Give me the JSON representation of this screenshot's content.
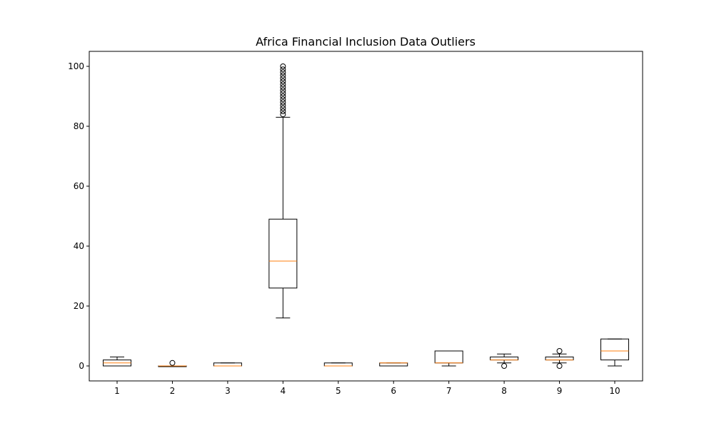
{
  "chart_data": {
    "type": "boxplot",
    "title": "Africa Financial Inclusion Data Outliers",
    "xlabel": "",
    "ylabel": "",
    "categories": [
      "1",
      "2",
      "3",
      "4",
      "5",
      "6",
      "7",
      "8",
      "9",
      "10"
    ],
    "ylim": [
      -5,
      105
    ],
    "yticks": [
      0,
      20,
      40,
      60,
      80,
      100
    ],
    "grid": false,
    "colors": {
      "box": "#000000",
      "median": "#ff7f0e",
      "flier": "#000000"
    },
    "boxes": [
      {
        "label": "1",
        "whisker_low": 0,
        "q1": 0,
        "median": 1,
        "q3": 2,
        "whisker_high": 3,
        "outliers": []
      },
      {
        "label": "2",
        "whisker_low": 0,
        "q1": 0,
        "median": 0,
        "q3": 0,
        "whisker_high": 0,
        "outliers": [
          1
        ]
      },
      {
        "label": "3",
        "whisker_low": 0,
        "q1": 0,
        "median": 0,
        "q3": 1,
        "whisker_high": 1,
        "outliers": []
      },
      {
        "label": "4",
        "whisker_low": 16,
        "q1": 26,
        "median": 35,
        "q3": 49,
        "whisker_high": 83,
        "outliers": [
          84,
          85,
          86,
          87,
          88,
          89,
          90,
          91,
          92,
          93,
          94,
          95,
          96,
          97,
          98,
          99,
          100
        ]
      },
      {
        "label": "5",
        "whisker_low": 0,
        "q1": 0,
        "median": 0,
        "q3": 1,
        "whisker_high": 1,
        "outliers": []
      },
      {
        "label": "6",
        "whisker_low": 0,
        "q1": 0,
        "median": 1,
        "q3": 1,
        "whisker_high": 1,
        "outliers": []
      },
      {
        "label": "7",
        "whisker_low": 0,
        "q1": 1,
        "median": 1,
        "q3": 5,
        "whisker_high": 5,
        "outliers": []
      },
      {
        "label": "8",
        "whisker_low": 1,
        "q1": 2,
        "median": 2,
        "q3": 3,
        "whisker_high": 4,
        "outliers": [
          0
        ]
      },
      {
        "label": "9",
        "whisker_low": 1,
        "q1": 2,
        "median": 2,
        "q3": 3,
        "whisker_high": 4,
        "outliers": [
          0,
          5
        ]
      },
      {
        "label": "10",
        "whisker_low": 0,
        "q1": 2,
        "median": 5,
        "q3": 9,
        "whisker_high": 9,
        "outliers": []
      }
    ]
  }
}
